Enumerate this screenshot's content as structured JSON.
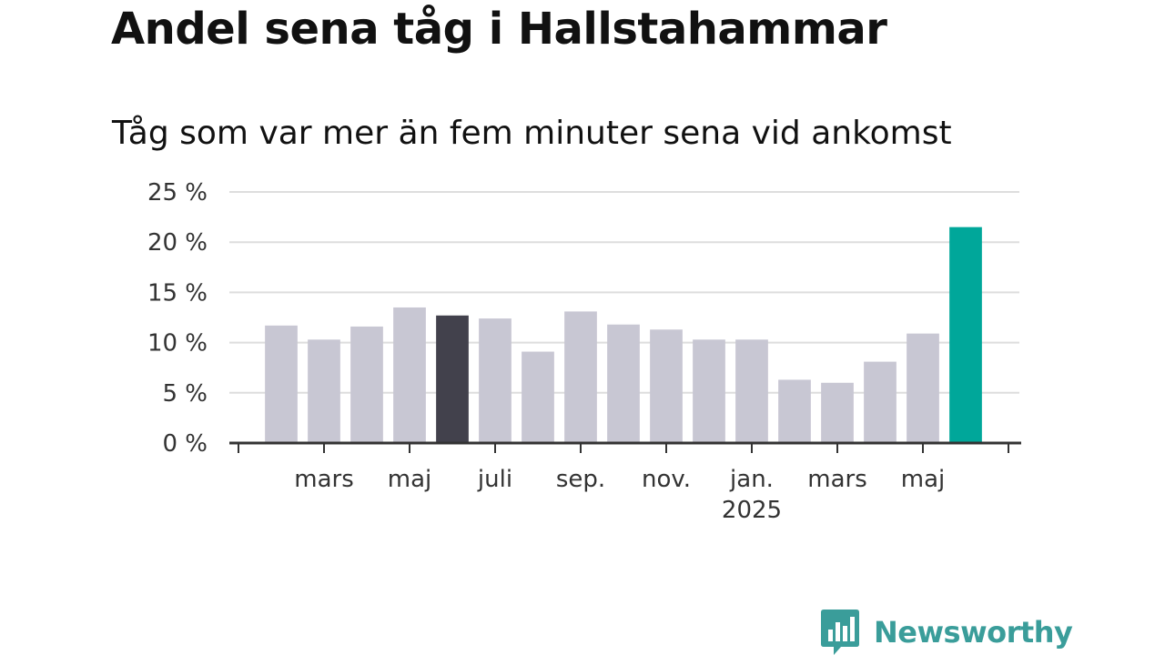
{
  "header": {
    "title": "Andel sena tåg i Hallstahammar",
    "subtitle": "Tåg som var mer än fem minuter sena vid ankomst"
  },
  "chart_data": {
    "type": "bar",
    "title": "Andel sena tåg i Hallstahammar",
    "subtitle": "Tåg som var mer än fem minuter sena vid ankomst",
    "xlabel": "",
    "ylabel": "",
    "ylim": [
      0,
      25
    ],
    "yticks": [
      0,
      5,
      10,
      15,
      20,
      25
    ],
    "ytick_labels": [
      "0 %",
      "5 %",
      "10 %",
      "15 %",
      "20 %",
      "25 %"
    ],
    "grid": true,
    "categories": [
      "2024-02",
      "2024-03",
      "2024-04",
      "2024-05",
      "2024-06",
      "2024-07",
      "2024-08",
      "2024-09",
      "2024-10",
      "2024-11",
      "2024-12",
      "2025-01",
      "2025-02",
      "2025-03",
      "2025-04",
      "2025-05",
      "2025-06"
    ],
    "values": [
      11.7,
      10.3,
      11.6,
      13.5,
      12.7,
      12.4,
      9.1,
      13.1,
      11.8,
      11.3,
      10.3,
      10.3,
      6.3,
      6.0,
      8.1,
      10.9,
      21.5
    ],
    "xtick_labels": [
      {
        "category": "2024-03",
        "label": "mars",
        "sub": ""
      },
      {
        "category": "2024-05",
        "label": "maj",
        "sub": ""
      },
      {
        "category": "2024-07",
        "label": "juli",
        "sub": ""
      },
      {
        "category": "2024-09",
        "label": "sep.",
        "sub": ""
      },
      {
        "category": "2024-11",
        "label": "nov.",
        "sub": ""
      },
      {
        "category": "2025-01",
        "label": "jan.",
        "sub": "2025"
      },
      {
        "category": "2025-03",
        "label": "mars",
        "sub": ""
      },
      {
        "category": "2025-05",
        "label": "maj",
        "sub": ""
      }
    ],
    "colors": {
      "default": "#c8c7d3",
      "highlight_dark": "#42414c",
      "highlight_latest": "#00a79a",
      "grid": "#dddddd",
      "axis": "#333333"
    },
    "highlights": {
      "2024-06": "highlight_dark",
      "2025-06": "highlight_latest"
    }
  },
  "branding": {
    "logo_text": "Newsworthy",
    "logo_icon": "bar-chart-speech-bubble-icon",
    "color": "#3a9d9a"
  }
}
